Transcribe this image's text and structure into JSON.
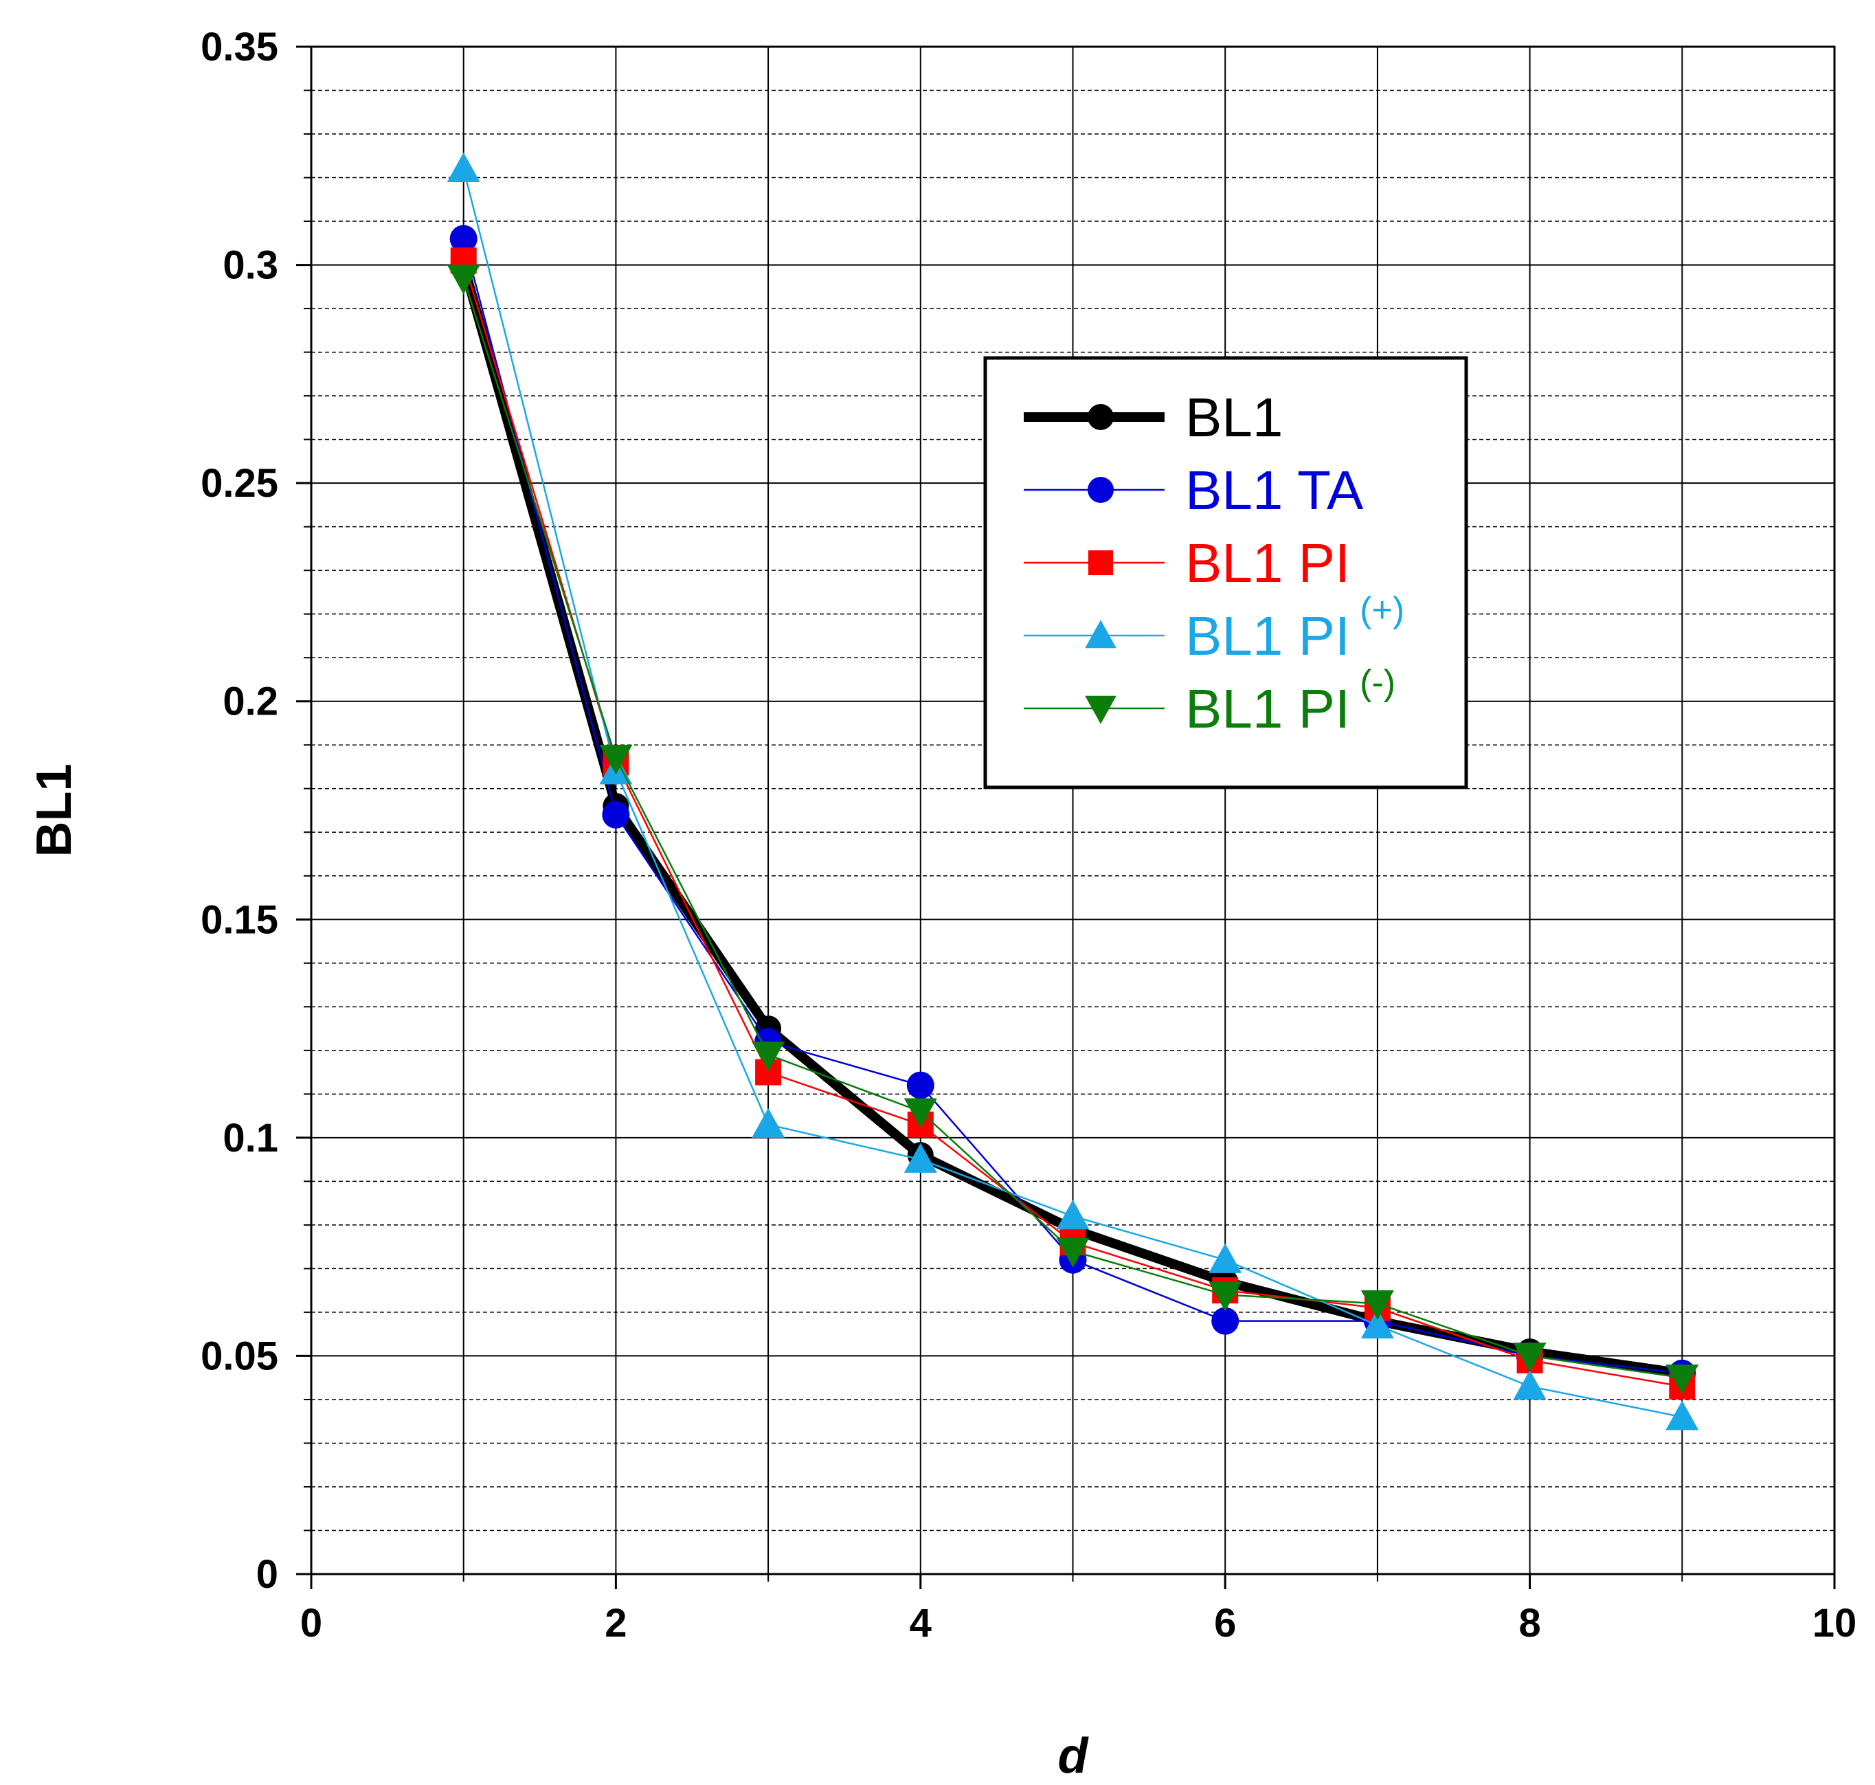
{
  "chart_data": {
    "type": "line",
    "xlabel": "d",
    "ylabel": "BL1",
    "xlim": [
      0,
      10
    ],
    "ylim": [
      0,
      0.35
    ],
    "x_ticks": [
      "0",
      "2",
      "4",
      "6",
      "8",
      "10"
    ],
    "y_ticks": [
      "0",
      "0.05",
      "0.1",
      "0.15",
      "0.2",
      "0.25",
      "0.3",
      "0.35"
    ],
    "grid": true,
    "legend_position": "top-right",
    "series": [
      {
        "label": "BL1",
        "sup": "",
        "color": "#000000",
        "marker": "circle",
        "width": "thick",
        "x": [
          1,
          2,
          3,
          4,
          5,
          6,
          7,
          8,
          9
        ],
        "y": [
          0.3,
          0.176,
          0.125,
          0.096,
          0.079,
          0.067,
          0.058,
          0.051,
          0.046
        ]
      },
      {
        "label": "BL1  TA",
        "sup": "",
        "color": "#0000dd",
        "marker": "circle",
        "width": "thin",
        "x": [
          1,
          2,
          3,
          4,
          5,
          6,
          7,
          8,
          9
        ],
        "y": [
          0.306,
          0.174,
          0.122,
          0.112,
          0.072,
          0.058,
          0.058,
          0.05,
          0.046
        ]
      },
      {
        "label": "BL1  PI",
        "sup": "",
        "color": "#ff0000",
        "marker": "square",
        "width": "thin",
        "x": [
          1,
          2,
          3,
          4,
          5,
          6,
          7,
          8,
          9
        ],
        "y": [
          0.301,
          0.186,
          0.115,
          0.103,
          0.076,
          0.065,
          0.061,
          0.049,
          0.043
        ]
      },
      {
        "label": "BL1  PI",
        "sup": "(+)",
        "color": "#1aa7e8",
        "marker": "triangle-up",
        "width": "thin",
        "x": [
          1,
          2,
          3,
          4,
          5,
          6,
          7,
          8,
          9
        ],
        "y": [
          0.322,
          0.184,
          0.103,
          0.095,
          0.082,
          0.072,
          0.057,
          0.043,
          0.036
        ]
      },
      {
        "label": "BL1  PI",
        "sup": "(-)",
        "color": "#0a7d0a",
        "marker": "triangle-down",
        "width": "thin",
        "x": [
          1,
          2,
          3,
          4,
          5,
          6,
          7,
          8,
          9
        ],
        "y": [
          0.297,
          0.187,
          0.119,
          0.106,
          0.074,
          0.064,
          0.062,
          0.05,
          0.045
        ]
      }
    ]
  }
}
